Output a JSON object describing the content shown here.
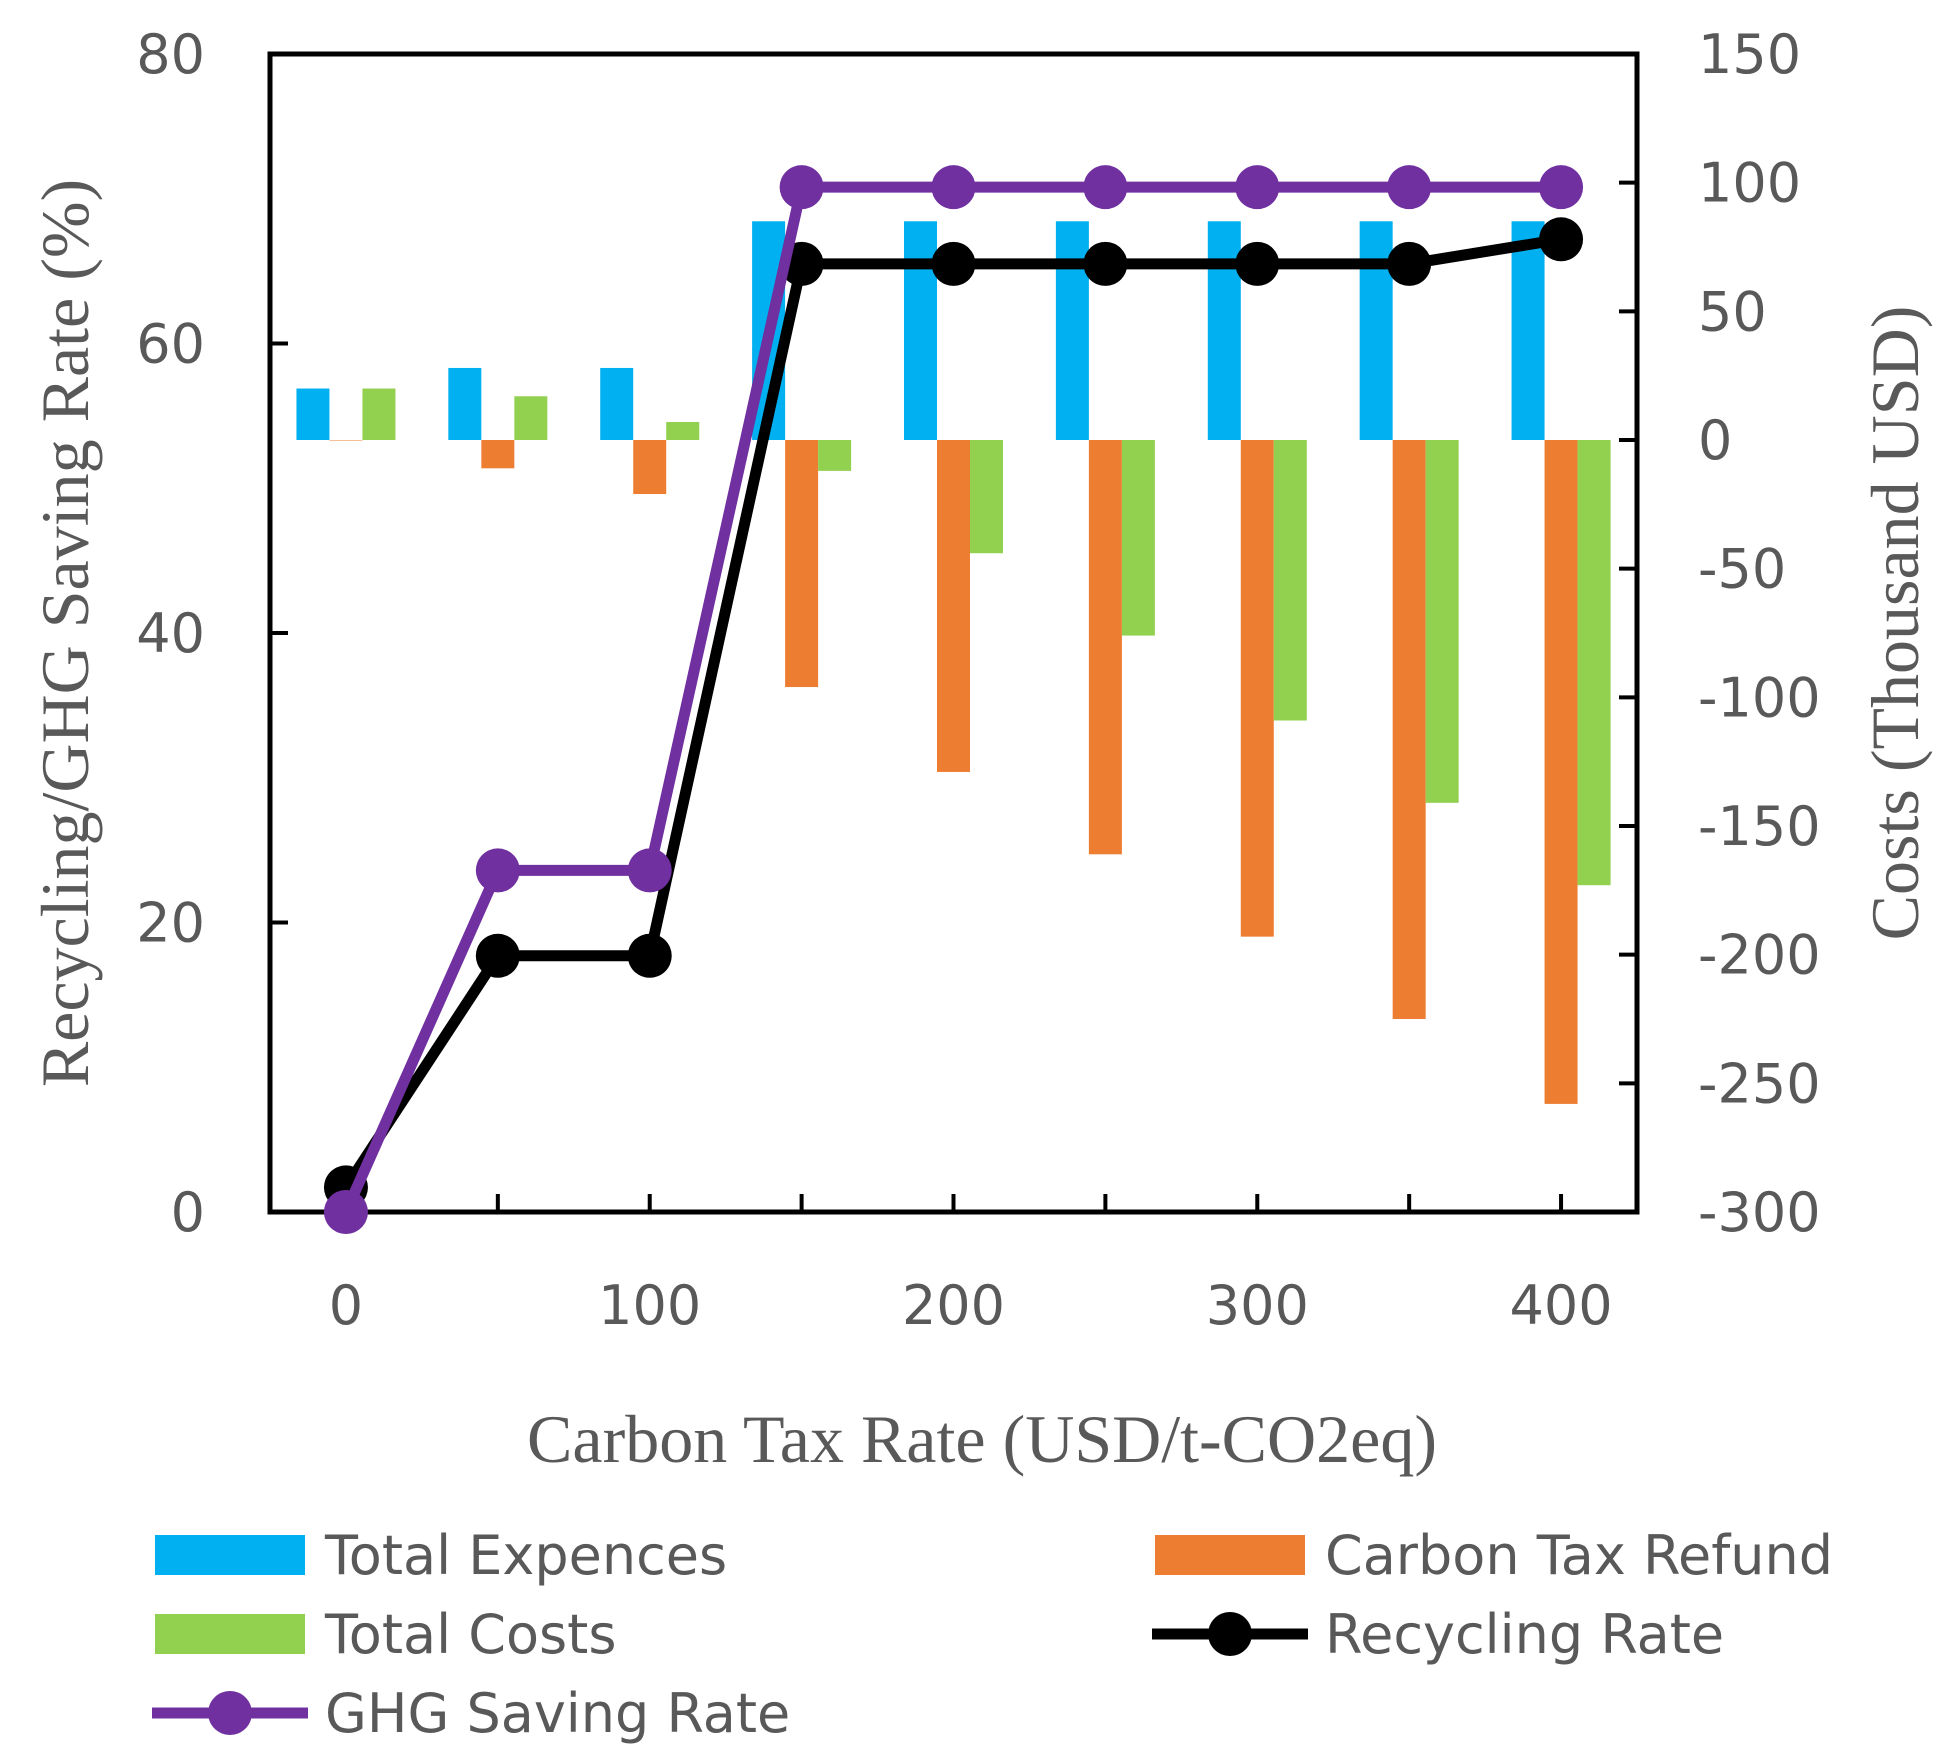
{
  "chart_data": {
    "type": "bar+line",
    "xlabel": "Carbon Tax Rate (USD/t-CO2eq)",
    "ylabel_left": "Recycling/GHG Saving Rate (%)",
    "ylabel_right": "Costs (Thousand USD)",
    "x": [
      0,
      50,
      100,
      150,
      200,
      250,
      300,
      350,
      400
    ],
    "x_tick_labels": [
      "0",
      "100",
      "200",
      "300",
      "400"
    ],
    "x_tick_label_values": [
      0,
      100,
      200,
      300,
      400
    ],
    "xlim": [
      -25,
      425
    ],
    "ylim_left": [
      0,
      80
    ],
    "ylim_right": [
      -300,
      150
    ],
    "y_ticks_left": [
      "0",
      "20",
      "40",
      "60",
      "80"
    ],
    "y_ticks_right": [
      "-300",
      "-250",
      "-200",
      "-150",
      "-100",
      "-50",
      "0",
      "50",
      "100",
      "150"
    ],
    "grid": false,
    "legend_position": "bottom",
    "bar_series": [
      {
        "name": "Total Expences",
        "color": "#00b0f0",
        "axis": "right",
        "values": [
          20,
          28,
          28,
          85,
          85,
          85,
          85,
          85,
          85
        ]
      },
      {
        "name": "Carbon Tax Refund",
        "color": "#ed7d31",
        "axis": "right",
        "values": [
          0,
          -11,
          -21,
          -96,
          -129,
          -161,
          -193,
          -225,
          -258
        ]
      },
      {
        "name": "Total Costs",
        "color": "#92d050",
        "axis": "right",
        "values": [
          20,
          17,
          7,
          -12,
          -44,
          -76,
          -109,
          -141,
          -173
        ]
      }
    ],
    "line_series": [
      {
        "name": "Recycling Rate",
        "color": "#000000",
        "axis": "left",
        "values": [
          1.7,
          17.7,
          17.7,
          65.5,
          65.5,
          65.5,
          65.5,
          65.5,
          67.2
        ]
      },
      {
        "name": "GHG Saving Rate",
        "color": "#7030a0",
        "axis": "left",
        "values": [
          0,
          23.6,
          23.6,
          70.8,
          70.8,
          70.8,
          70.8,
          70.8,
          70.8
        ]
      }
    ]
  }
}
